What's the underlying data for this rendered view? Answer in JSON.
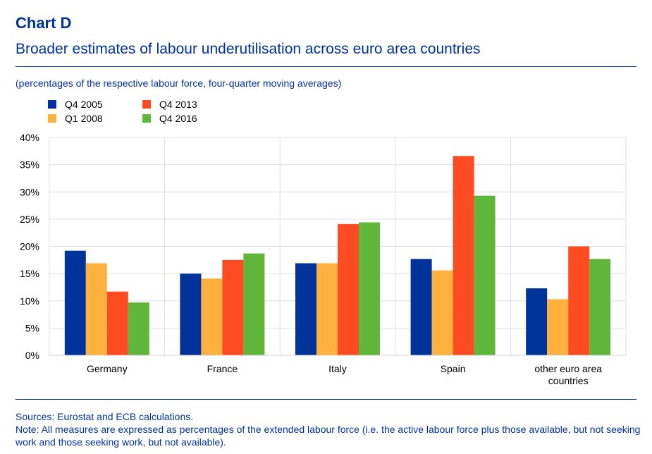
{
  "header": {
    "chart_label": "Chart D",
    "title": "Broader estimates of labour underutilisation across euro area countries"
  },
  "subtitle": "(percentages of the respective labour force, four-quarter moving averages)",
  "footer": {
    "sources": "Sources: Eurostat and ECB calculations.",
    "note": "Note: All measures are expressed as percentages of the extended labour force (i.e. the active labour force plus those available, but not seeking work and those seeking work, but not available)."
  },
  "chart_data": {
    "type": "bar",
    "title": "Broader estimates of labour underutilisation across euro area countries",
    "xlabel": "",
    "ylabel": "",
    "ylim": [
      0,
      40
    ],
    "yticks": [
      "0%",
      "5%",
      "10%",
      "15%",
      "20%",
      "25%",
      "30%",
      "35%",
      "40%"
    ],
    "categories": [
      "Germany",
      "France",
      "Italy",
      "Spain",
      "other euro area countries"
    ],
    "category_lines": [
      [
        "Germany"
      ],
      [
        "France"
      ],
      [
        "Italy"
      ],
      [
        "Spain"
      ],
      [
        "other euro area",
        "countries"
      ]
    ],
    "legend_position": "top-left",
    "grid": true,
    "series": [
      {
        "name": "Q4 2005",
        "color": "#003399",
        "values": [
          19.2,
          15.0,
          16.9,
          17.7,
          12.3
        ]
      },
      {
        "name": "Q1 2008",
        "color": "#FFB140",
        "values": [
          16.9,
          14.1,
          16.9,
          15.6,
          10.3
        ]
      },
      {
        "name": "Q4 2013",
        "color": "#FF4B21",
        "values": [
          11.7,
          17.5,
          24.1,
          36.6,
          20.0
        ]
      },
      {
        "name": "Q4 2016",
        "color": "#5FB63A",
        "values": [
          9.7,
          18.7,
          24.4,
          29.3,
          17.7
        ]
      }
    ]
  }
}
